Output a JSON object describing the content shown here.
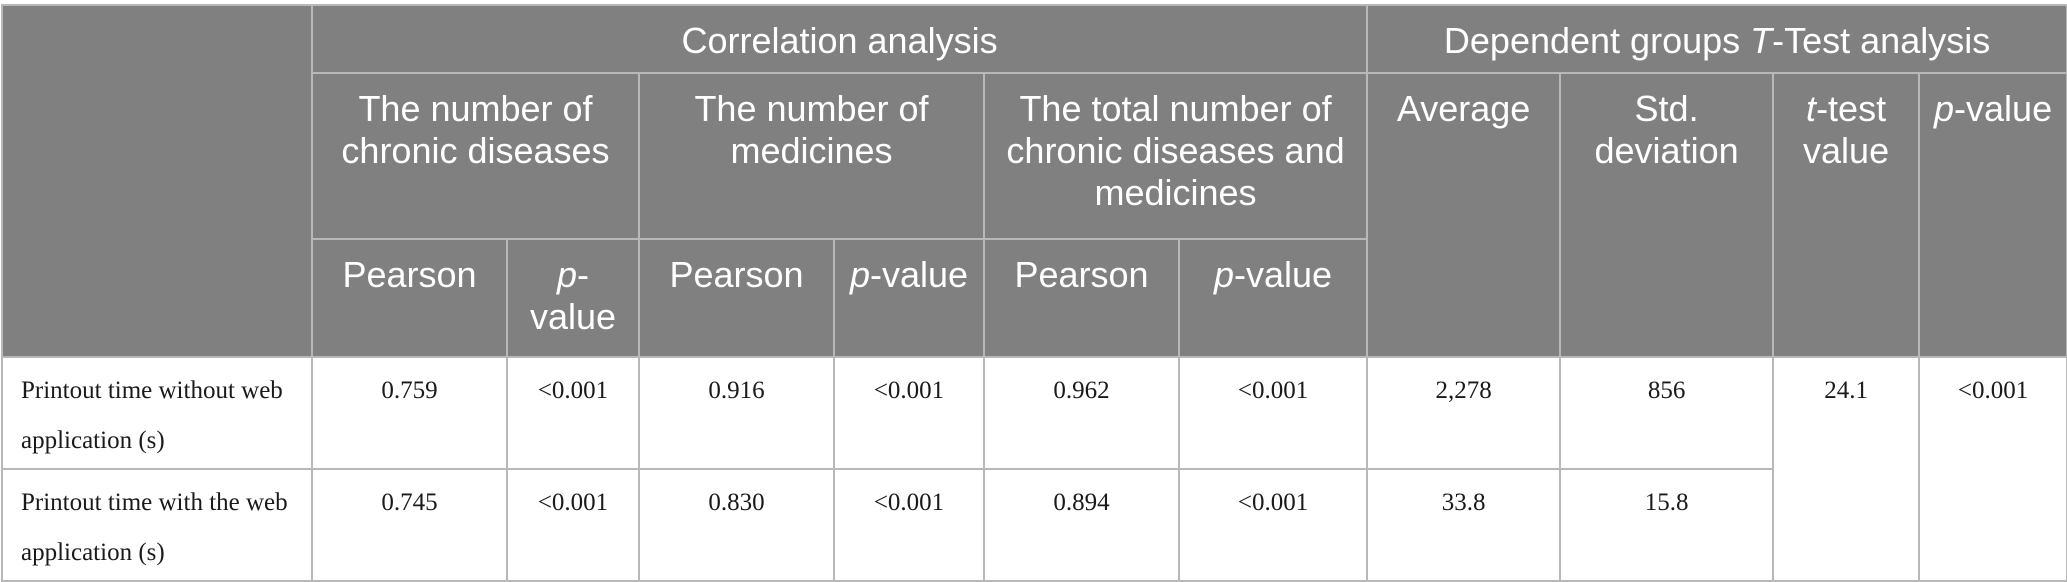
{
  "header": {
    "group_correlation": "Correlation analysis",
    "group_ttest_pre": "Dependent groups ",
    "group_ttest_italic": "T",
    "group_ttest_post": "-Test analysis",
    "col_chronic": "The number of chronic diseases",
    "col_medicines": "The number of medicines",
    "col_total": "The total number of chronic diseases and medicines",
    "col_average": "Average",
    "col_std": "Std. deviation",
    "col_ttest_italic": "t",
    "col_ttest_post": "-test value",
    "col_pvalue_italic": "p",
    "col_pvalue_post": "-value",
    "sub_pearson": "Pearson",
    "sub_p_italic": "p",
    "sub_p_post": "-value"
  },
  "rows": [
    {
      "label": "Printout time without web application (s)",
      "chronic_pearson": "0.759",
      "chronic_p": "<0.001",
      "medicines_pearson": "0.916",
      "medicines_p": "<0.001",
      "total_pearson": "0.962",
      "total_p": "<0.001",
      "average": "2,278",
      "std": "856",
      "ttest": "24.1",
      "pvalue": "<0.001"
    },
    {
      "label": "Printout time with the web application (s)",
      "chronic_pearson": "0.745",
      "chronic_p": "<0.001",
      "medicines_pearson": "0.830",
      "medicines_p": "<0.001",
      "total_pearson": "0.894",
      "total_p": "<0.001",
      "average": "33.8",
      "std": "15.8"
    }
  ]
}
